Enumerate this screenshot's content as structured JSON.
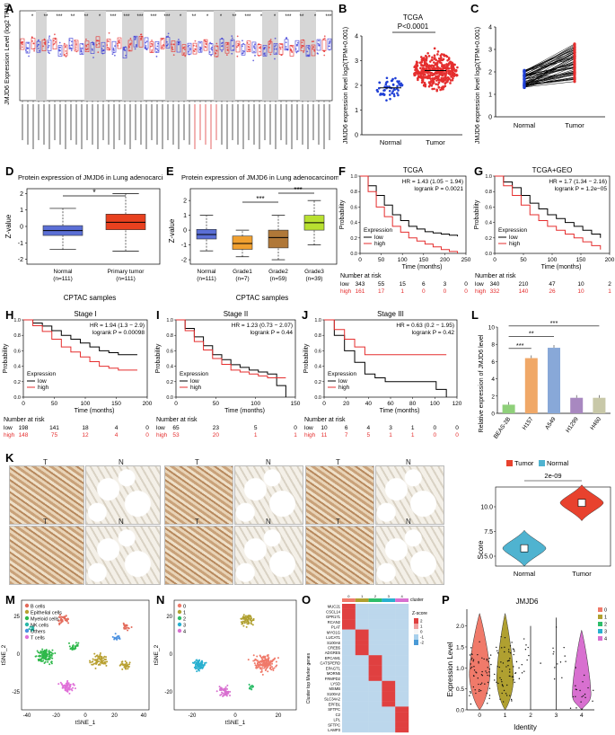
{
  "panel_labels": {
    "a": "A",
    "b": "B",
    "c": "C",
    "d": "D",
    "e": "E",
    "f": "F",
    "g": "G",
    "h": "H",
    "i": "I",
    "j": "J",
    "k": "K",
    "l": "L",
    "m": "M",
    "n": "N",
    "o": "O",
    "p": "P"
  },
  "panel_a": {
    "ylabel": "JMJD6 Expression Level (log2 TPM)",
    "stars": [
      "*",
      "**",
      "***",
      "**",
      "**",
      "*",
      "***",
      "***",
      "***",
      "***",
      "***",
      "*",
      "**",
      "*",
      "*",
      "**",
      "***",
      "*",
      "*",
      "***",
      "**",
      "*",
      "***"
    ]
  },
  "panel_b": {
    "chart_data": {
      "type": "scatter",
      "title": "TCGA",
      "pvalue": "P<0.0001",
      "ylabel": "JMJD6 expression level log2(TPM+0.001)",
      "categories": [
        "Normal",
        "Tumor"
      ],
      "ylim": [
        0,
        4
      ],
      "yticks": [
        "0",
        "1",
        "2",
        "3",
        "4"
      ],
      "median": [
        1.9,
        2.6
      ]
    }
  },
  "panel_c": {
    "chart_data": {
      "type": "line",
      "ylabel": "JMJD6 expression level log2(TPM+0.001)",
      "categories": [
        "Normal",
        "Tumor"
      ],
      "ylim": [
        0,
        4
      ],
      "yticks": [
        "0",
        "1",
        "2",
        "3",
        "4"
      ]
    }
  },
  "panel_d": {
    "chart_data": {
      "type": "box",
      "title": "Protein expression of JMJD6 in Lung adenocarcinoma",
      "ylabel": "Z-value",
      "xlabel": "CPTAC samples",
      "categories": [
        "Normal",
        "Primary tumor"
      ],
      "counts": [
        "(n=111)",
        "(n=111)"
      ],
      "star": "*",
      "yticks": [
        "-2",
        "-1",
        "0",
        "1",
        "2"
      ],
      "ylim": [
        -2.3,
        2.3
      ],
      "median": [
        -0.25,
        0.25
      ],
      "q1": [
        -0.55,
        -0.2
      ],
      "q3": [
        0.05,
        0.75
      ],
      "whisker_low": [
        -1.4,
        -1.5
      ],
      "whisker_high": [
        1.1,
        2.0
      ],
      "colors": [
        "#5b6fd6",
        "#e8411f"
      ]
    }
  },
  "panel_e": {
    "chart_data": {
      "type": "box",
      "title": "Protein expression of JMJD6 in Lung adenocarcinoma",
      "ylabel": "Z-value",
      "xlabel": "CPTAC samples",
      "categories": [
        "Normal",
        "Grade1",
        "Grade2",
        "Grade3"
      ],
      "counts": [
        "(n=111)",
        "(n=7)",
        "(n=59)",
        "(n=39)"
      ],
      "stars": [
        "***",
        "***"
      ],
      "yticks": [
        "-2",
        "-1",
        "0",
        "1",
        "2"
      ],
      "ylim": [
        -2.3,
        2.8
      ],
      "median": [
        -0.3,
        -0.9,
        -0.5,
        0.5
      ],
      "q1": [
        -0.6,
        -1.3,
        -1.2,
        0.0
      ],
      "q3": [
        0.05,
        -0.4,
        0.0,
        1.0
      ],
      "whisker_low": [
        -1.4,
        -1.8,
        -2.0,
        -1.0
      ],
      "whisker_high": [
        1.0,
        0.0,
        1.0,
        2.0
      ],
      "colors": [
        "#5b6fd6",
        "#f0a030",
        "#b07838",
        "#b8e030"
      ]
    }
  },
  "panel_f": {
    "chart_data": {
      "type": "line",
      "title": "TCGA",
      "hr": "HR = 1.43 (1.05 − 1.94)",
      "logrank": "logrank P = 0.0021",
      "ylabel": "Probability",
      "xlabel": "Time (months)",
      "xticks": [
        "0",
        "50",
        "100",
        "150",
        "200",
        "250"
      ],
      "yticks": [
        "0.0",
        "0.2",
        "0.4",
        "0.6",
        "0.8",
        "1.0"
      ],
      "legend_title": "Expression",
      "legend": [
        "low",
        "high"
      ],
      "risk_header": "Number at risk",
      "risk_low": [
        "low",
        "343",
        "55",
        "15",
        "6",
        "3",
        "0"
      ],
      "risk_high": [
        "high",
        "161",
        "17",
        "1",
        "0",
        "0",
        "0"
      ],
      "low_y": [
        1.0,
        0.75,
        0.5,
        0.35,
        0.28,
        0.25,
        0.22
      ],
      "high_y": [
        1.0,
        0.6,
        0.35,
        0.2,
        0.12,
        0.05,
        0.0
      ]
    }
  },
  "panel_g": {
    "chart_data": {
      "type": "line",
      "title": "TCGA+GEO",
      "hr": "HR = 1.7 (1.34 − 2.16)",
      "logrank": "logrank P = 1.2e−05",
      "ylabel": "Probability",
      "xlabel": "Time (months)",
      "xticks": [
        "0",
        "50",
        "100",
        "150",
        "200"
      ],
      "yticks": [
        "0.0",
        "0.2",
        "0.4",
        "0.6",
        "0.8",
        "1.0"
      ],
      "legend_title": "Expression",
      "legend": [
        "low",
        "high"
      ],
      "risk_header": "Number at risk",
      "risk_low": [
        "low",
        "340",
        "210",
        "47",
        "10",
        "2"
      ],
      "risk_high": [
        "high",
        "332",
        "140",
        "26",
        "10",
        "1"
      ],
      "low_y": [
        1.0,
        0.85,
        0.65,
        0.5,
        0.4,
        0.3,
        0.2
      ],
      "high_y": [
        1.0,
        0.75,
        0.5,
        0.35,
        0.25,
        0.15,
        0.05
      ]
    }
  },
  "panel_h": {
    "chart_data": {
      "type": "line",
      "title": "Stage I",
      "hr": "HR = 1.94 (1.3 − 2.9)",
      "logrank": "logrank P = 0.00098",
      "ylabel": "Probability",
      "xlabel": "Time (months)",
      "xticks": [
        "0",
        "50",
        "100",
        "150",
        "200"
      ],
      "yticks": [
        "0.0",
        "0.2",
        "0.4",
        "0.6",
        "0.8",
        "1.0"
      ],
      "legend_title": "Expression",
      "legend": [
        "low",
        "high"
      ],
      "risk_header": "Number at risk",
      "risk_low": [
        "low",
        "198",
        "141",
        "18",
        "4",
        "0"
      ],
      "risk_high": [
        "high",
        "148",
        "75",
        "12",
        "4",
        "0"
      ],
      "low_y": [
        1.0,
        0.92,
        0.8,
        0.7,
        0.6,
        0.55,
        0.55
      ],
      "high_y": [
        1.0,
        0.85,
        0.65,
        0.52,
        0.4,
        0.35,
        0.35
      ]
    }
  },
  "panel_i": {
    "chart_data": {
      "type": "line",
      "title": "Stage II",
      "hr": "HR = 1.23 (0.73 − 2.07)",
      "logrank": "logrank P = 0.44",
      "ylabel": "Probability",
      "xlabel": "Time (months)",
      "xticks": [
        "0",
        "50",
        "100",
        "150"
      ],
      "yticks": [
        "0.0",
        "0.2",
        "0.4",
        "0.6",
        "0.8",
        "1.0"
      ],
      "legend_title": "Expression",
      "legend": [
        "low",
        "high"
      ],
      "risk_header": "Number at risk",
      "risk_low": [
        "low",
        "65",
        "23",
        "5",
        "0"
      ],
      "risk_high": [
        "high",
        "53",
        "20",
        "1",
        "1"
      ],
      "low_y": [
        1.0,
        0.78,
        0.55,
        0.42,
        0.35,
        0.3,
        0.0
      ],
      "high_y": [
        1.0,
        0.72,
        0.5,
        0.35,
        0.3,
        0.25,
        0.25
      ]
    }
  },
  "panel_j": {
    "chart_data": {
      "type": "line",
      "title": "Stage III",
      "hr": "HR = 0.63 (0.2 − 1.95)",
      "logrank": "logrank P = 0.42",
      "ylabel": "Probability",
      "xlabel": "Time (months)",
      "xticks": [
        "0",
        "20",
        "40",
        "60",
        "80",
        "100",
        "120"
      ],
      "yticks": [
        "0.0",
        "0.2",
        "0.4",
        "0.6",
        "0.8",
        "1.0"
      ],
      "legend_title": "Expression",
      "legend": [
        "low",
        "high"
      ],
      "risk_header": "Number at risk",
      "risk_low": [
        "low",
        "10",
        "6",
        "4",
        "3",
        "1",
        "0",
        "0"
      ],
      "risk_high": [
        "high",
        "11",
        "7",
        "5",
        "1",
        "1",
        "0",
        "0"
      ],
      "low_y": [
        1.0,
        0.6,
        0.3,
        0.2,
        0.2,
        0.2,
        0.0
      ],
      "high_y": [
        1.0,
        0.75,
        0.55,
        0.55,
        0.55,
        0.55,
        0.55
      ]
    }
  },
  "panel_k": {
    "tumor_label": "T",
    "normal_label": "N",
    "chart_data": {
      "type": "violin",
      "legend": [
        "Tumor",
        "Normal"
      ],
      "categories": [
        "Normal",
        "Tumor"
      ],
      "pvalue": "2e-09",
      "ylabel": "Score",
      "yticks": [
        "5.0",
        "7.5",
        "10.0"
      ],
      "ylim": [
        4.0,
        12.0
      ],
      "median": [
        5.8,
        10.4
      ],
      "colors": [
        "#4fb3d0",
        "#e8422e"
      ]
    }
  },
  "panel_l": {
    "chart_data": {
      "type": "bar",
      "ylabel": "Relative expression of JMJD6 level",
      "categories": [
        "BEAS-2B",
        "H157",
        "A549",
        "H1299",
        "H460"
      ],
      "values": [
        1.0,
        6.4,
        7.6,
        1.8,
        1.8
      ],
      "ylim": [
        0,
        10
      ],
      "yticks": [
        "0",
        "2",
        "4",
        "6",
        "8",
        "10"
      ],
      "stars": [
        "***",
        "**",
        "***"
      ],
      "colors": [
        "#8fd07a",
        "#f0a868",
        "#88a8d8",
        "#a888c0",
        "#c8c8a8"
      ]
    }
  },
  "panel_m": {
    "chart_data": {
      "type": "scatter",
      "xlabel": "tSNE_1",
      "ylabel": "tSNE_2",
      "xticks": [
        "-40",
        "-20",
        "0",
        "20",
        "40"
      ],
      "yticks": [
        "-25",
        "0",
        "25"
      ],
      "legend": [
        "B cells",
        "Epithelial cells",
        "Myeloid cells",
        "NK cells",
        "Others",
        "T cells"
      ],
      "colors": [
        "#e36a5a",
        "#b8a030",
        "#2eb84a",
        "#2ab8a8",
        "#4a90e0",
        "#e070d8"
      ]
    }
  },
  "panel_n": {
    "chart_data": {
      "type": "scatter",
      "xlabel": "tSNE_1",
      "ylabel": "tSNE_2",
      "xticks": [
        "-20",
        "0",
        "20"
      ],
      "yticks": [
        "-20",
        "0",
        "20"
      ],
      "legend": [
        "0",
        "1",
        "2",
        "3",
        "4"
      ],
      "colors": [
        "#f07a6a",
        "#b0a030",
        "#2ebd6a",
        "#28b0d0",
        "#d870d0"
      ]
    }
  },
  "panel_o": {
    "chart_data": {
      "type": "heatmap",
      "cluster_label": "cluster",
      "ylabel": "Cluster top Marker genes",
      "genes": [
        "MUC21",
        "CSCL14",
        "GPR171",
        "RCAN2",
        "PLAT",
        "MYO1G",
        "LUCAT1",
        "S100A6",
        "CREB5",
        "ADGRE5",
        "EPCAM1",
        "CATSPERD",
        "EPAGT1",
        "MORN5",
        "FRMPD2",
        "LYSD",
        "MSMB",
        "S100A2",
        "SLC34A2",
        "EPFB1",
        "SFTPC",
        "C2",
        "LPL",
        "SFTPC",
        "LAMP3"
      ],
      "scale_title": "Z-score",
      "scale_ticks": [
        "2",
        "1",
        "0",
        "-1",
        "-2"
      ],
      "cluster_colors": [
        "#f07a6a",
        "#b0a030",
        "#2ebd6a",
        "#28b0d0",
        "#d870d0"
      ]
    }
  },
  "panel_p": {
    "chart_data": {
      "type": "violin",
      "title": "JMJD6",
      "ylabel": "Expression Level",
      "xlabel": "Identity",
      "categories": [
        "0",
        "1",
        "2",
        "3",
        "4"
      ],
      "yticks": [
        "0.0",
        "0.5",
        "1.0",
        "1.5",
        "2.0"
      ],
      "legend": [
        "0",
        "1",
        "2",
        "3",
        "4"
      ],
      "colors": [
        "#f07a6a",
        "#b0a030",
        "#2ebd6a",
        "#28b0d0",
        "#d870d0"
      ]
    }
  }
}
